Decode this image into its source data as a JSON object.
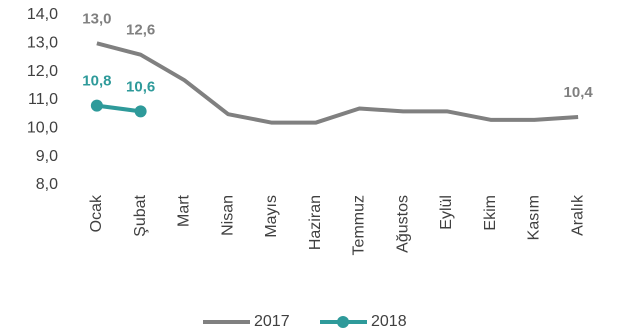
{
  "chart_data": {
    "type": "line",
    "categories": [
      "Ocak",
      "Şubat",
      "Mart",
      "Nisan",
      "Mayıs",
      "Haziran",
      "Temmuz",
      "Ağustos",
      "Eylül",
      "Ekim",
      "Kasım",
      "Aralık"
    ],
    "series": [
      {
        "name": "2017",
        "color": "#808080",
        "marker": false,
        "values": [
          13.0,
          12.6,
          11.7,
          10.5,
          10.2,
          10.2,
          10.7,
          10.6,
          10.6,
          10.3,
          10.3,
          10.4
        ],
        "value_labels": [
          "13,0",
          "12,6",
          null,
          null,
          null,
          null,
          null,
          null,
          null,
          null,
          null,
          "10,4"
        ]
      },
      {
        "name": "2018",
        "color": "#2e9a9a",
        "marker": true,
        "values": [
          10.8,
          10.6,
          null,
          null,
          null,
          null,
          null,
          null,
          null,
          null,
          null,
          null
        ],
        "value_labels": [
          "10,8",
          "10,6",
          null,
          null,
          null,
          null,
          null,
          null,
          null,
          null,
          null,
          null
        ]
      }
    ],
    "ylim": [
      8,
      14
    ],
    "yticks": [
      {
        "value": 8,
        "label": "8,0"
      },
      {
        "value": 9,
        "label": "9,0"
      },
      {
        "value": 10,
        "label": "10,0"
      },
      {
        "value": 11,
        "label": "11,0"
      },
      {
        "value": 12,
        "label": "12,0"
      },
      {
        "value": 13,
        "label": "13,0"
      },
      {
        "value": 14,
        "label": "14,0"
      }
    ],
    "grid": false,
    "legend": "bottom"
  }
}
